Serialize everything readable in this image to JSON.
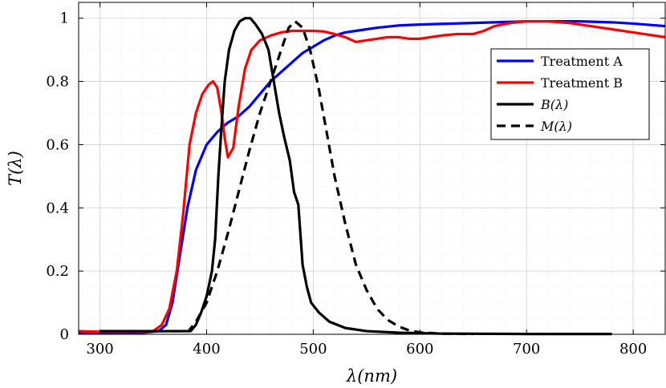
{
  "chart_data": {
    "type": "line",
    "title": "",
    "xlabel": "λ(nm)",
    "ylabel": "T(λ)",
    "xlim": [
      280,
      830
    ],
    "ylim": [
      0,
      1.05
    ],
    "xticks": [
      300,
      400,
      500,
      600,
      700,
      800
    ],
    "yticks": [
      0,
      0.2,
      0.4,
      0.6,
      0.8,
      1
    ],
    "xtick_labels": [
      "300",
      "400",
      "500",
      "600",
      "700",
      "800"
    ],
    "ytick_labels": [
      "0",
      "0.2",
      "0.4",
      "0.6",
      "0.8",
      "1"
    ],
    "grid": true,
    "legend_position": "top-right",
    "series": [
      {
        "name": "Treatment A",
        "color": "#0000ff",
        "style": "solid",
        "points": [
          [
            280,
            0.005
          ],
          [
            300,
            0.005
          ],
          [
            340,
            0.005
          ],
          [
            355,
            0.01
          ],
          [
            362,
            0.03
          ],
          [
            368,
            0.1
          ],
          [
            375,
            0.25
          ],
          [
            382,
            0.4
          ],
          [
            390,
            0.52
          ],
          [
            400,
            0.6
          ],
          [
            410,
            0.64
          ],
          [
            420,
            0.67
          ],
          [
            430,
            0.69
          ],
          [
            440,
            0.72
          ],
          [
            450,
            0.76
          ],
          [
            460,
            0.8
          ],
          [
            470,
            0.83
          ],
          [
            480,
            0.86
          ],
          [
            490,
            0.89
          ],
          [
            500,
            0.91
          ],
          [
            510,
            0.93
          ],
          [
            520,
            0.945
          ],
          [
            530,
            0.955
          ],
          [
            540,
            0.96
          ],
          [
            560,
            0.97
          ],
          [
            580,
            0.977
          ],
          [
            600,
            0.98
          ],
          [
            650,
            0.985
          ],
          [
            700,
            0.99
          ],
          [
            750,
            0.99
          ],
          [
            780,
            0.987
          ],
          [
            800,
            0.983
          ],
          [
            830,
            0.975
          ]
        ]
      },
      {
        "name": "Treatment B",
        "color": "#ff0000",
        "style": "solid",
        "points": [
          [
            280,
            0.01
          ],
          [
            300,
            0.008
          ],
          [
            340,
            0.008
          ],
          [
            350,
            0.01
          ],
          [
            358,
            0.03
          ],
          [
            365,
            0.08
          ],
          [
            372,
            0.2
          ],
          [
            378,
            0.38
          ],
          [
            384,
            0.6
          ],
          [
            390,
            0.7
          ],
          [
            396,
            0.76
          ],
          [
            402,
            0.79
          ],
          [
            406,
            0.8
          ],
          [
            410,
            0.78
          ],
          [
            414,
            0.7
          ],
          [
            417,
            0.62
          ],
          [
            420,
            0.56
          ],
          [
            425,
            0.59
          ],
          [
            430,
            0.72
          ],
          [
            436,
            0.84
          ],
          [
            442,
            0.9
          ],
          [
            450,
            0.93
          ],
          [
            460,
            0.945
          ],
          [
            470,
            0.955
          ],
          [
            480,
            0.96
          ],
          [
            490,
            0.96
          ],
          [
            500,
            0.96
          ],
          [
            510,
            0.958
          ],
          [
            520,
            0.95
          ],
          [
            530,
            0.94
          ],
          [
            540,
            0.925
          ],
          [
            550,
            0.93
          ],
          [
            560,
            0.935
          ],
          [
            570,
            0.94
          ],
          [
            580,
            0.94
          ],
          [
            590,
            0.935
          ],
          [
            600,
            0.935
          ],
          [
            610,
            0.94
          ],
          [
            620,
            0.945
          ],
          [
            635,
            0.95
          ],
          [
            650,
            0.95
          ],
          [
            660,
            0.96
          ],
          [
            670,
            0.975
          ],
          [
            685,
            0.985
          ],
          [
            700,
            0.99
          ],
          [
            720,
            0.99
          ],
          [
            740,
            0.985
          ],
          [
            760,
            0.975
          ],
          [
            780,
            0.965
          ],
          [
            800,
            0.955
          ],
          [
            830,
            0.94
          ]
        ]
      },
      {
        "name": "B(λ)",
        "color": "#000000",
        "style": "solid",
        "points": [
          [
            300,
            0.01
          ],
          [
            320,
            0.01
          ],
          [
            340,
            0.01
          ],
          [
            360,
            0.01
          ],
          [
            380,
            0.01
          ],
          [
            385,
            0.01
          ],
          [
            390,
            0.03
          ],
          [
            395,
            0.07
          ],
          [
            400,
            0.12
          ],
          [
            405,
            0.2
          ],
          [
            408,
            0.3
          ],
          [
            411,
            0.5
          ],
          [
            414,
            0.66
          ],
          [
            417,
            0.8
          ],
          [
            421,
            0.9
          ],
          [
            426,
            0.96
          ],
          [
            431,
            0.99
          ],
          [
            436,
            1.0
          ],
          [
            441,
            1.0
          ],
          [
            446,
            0.98
          ],
          [
            452,
            0.95
          ],
          [
            458,
            0.9
          ],
          [
            463,
            0.8
          ],
          [
            468,
            0.7
          ],
          [
            473,
            0.62
          ],
          [
            478,
            0.55
          ],
          [
            482,
            0.45
          ],
          [
            486,
            0.41
          ],
          [
            490,
            0.22
          ],
          [
            494,
            0.15
          ],
          [
            498,
            0.1
          ],
          [
            505,
            0.07
          ],
          [
            515,
            0.04
          ],
          [
            530,
            0.02
          ],
          [
            550,
            0.01
          ],
          [
            580,
            0.005
          ],
          [
            620,
            0.002
          ],
          [
            700,
            0.001
          ],
          [
            780,
            0.001
          ]
        ]
      },
      {
        "name": "M(λ)",
        "color": "#000000",
        "style": "dashed",
        "points": [
          [
            300,
            0.01
          ],
          [
            340,
            0.01
          ],
          [
            380,
            0.01
          ],
          [
            383,
            0.01
          ],
          [
            390,
            0.04
          ],
          [
            400,
            0.1
          ],
          [
            410,
            0.2
          ],
          [
            420,
            0.32
          ],
          [
            430,
            0.45
          ],
          [
            440,
            0.58
          ],
          [
            450,
            0.7
          ],
          [
            460,
            0.8
          ],
          [
            470,
            0.9
          ],
          [
            477,
            0.97
          ],
          [
            483,
            0.99
          ],
          [
            490,
            0.97
          ],
          [
            497,
            0.9
          ],
          [
            505,
            0.78
          ],
          [
            512,
            0.65
          ],
          [
            520,
            0.5
          ],
          [
            530,
            0.35
          ],
          [
            540,
            0.22
          ],
          [
            550,
            0.14
          ],
          [
            560,
            0.08
          ],
          [
            570,
            0.045
          ],
          [
            580,
            0.025
          ],
          [
            590,
            0.012
          ],
          [
            600,
            0.006
          ],
          [
            620,
            0.002
          ],
          [
            650,
            0.001
          ]
        ]
      }
    ]
  }
}
